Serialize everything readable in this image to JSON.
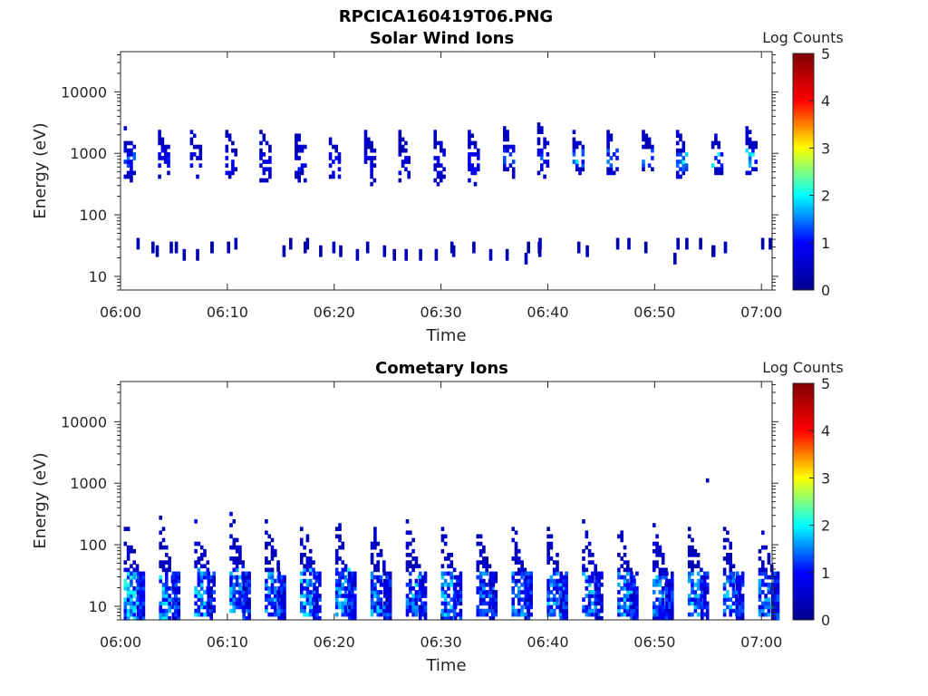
{
  "figure_title": "RPCICA160419T06.PNG",
  "colors": {
    "colormap": [
      "#00008f",
      "#0000ff",
      "#00ffff",
      "#ffff00",
      "#ff0000",
      "#800000"
    ],
    "axes": "#262626"
  },
  "chart_data": [
    {
      "type": "heatmap",
      "title": "Solar Wind Ions",
      "xlabel": "Time",
      "ylabel": "Energy (eV)",
      "yscale": "log",
      "ylim": [
        6,
        45000
      ],
      "xlim": [
        "06:00",
        "07:01"
      ],
      "x_ticks": [
        "06:00",
        "06:10",
        "06:20",
        "06:30",
        "06:40",
        "06:50",
        "07:00"
      ],
      "y_ticks": [
        "10",
        "100",
        "1000",
        "10000"
      ],
      "colorbar": {
        "label": "Log Counts",
        "range": [
          0,
          5
        ],
        "ticks": [
          "0",
          "1",
          "2",
          "3",
          "4",
          "5"
        ]
      },
      "bursts": [
        {
          "t": 0.3,
          "hi": 2600,
          "lo": 350,
          "peak": 1.3
        },
        {
          "t": 3.5,
          "hi": 2400,
          "lo": 400,
          "peak": 1.0
        },
        {
          "t": 6.5,
          "hi": 2200,
          "lo": 400,
          "peak": 0.9
        },
        {
          "t": 9.8,
          "hi": 2400,
          "lo": 300,
          "peak": 0.9
        },
        {
          "t": 13.0,
          "hi": 2400,
          "lo": 350,
          "peak": 0.9
        },
        {
          "t": 16.3,
          "hi": 2400,
          "lo": 350,
          "peak": 1.0
        },
        {
          "t": 19.5,
          "hi": 2200,
          "lo": 350,
          "peak": 0.9
        },
        {
          "t": 22.8,
          "hi": 2200,
          "lo": 300,
          "peak": 0.9
        },
        {
          "t": 26.0,
          "hi": 2200,
          "lo": 350,
          "peak": 0.9
        },
        {
          "t": 29.3,
          "hi": 2400,
          "lo": 300,
          "peak": 0.9
        },
        {
          "t": 32.5,
          "hi": 2400,
          "lo": 300,
          "peak": 1.0
        },
        {
          "t": 35.8,
          "hi": 2600,
          "lo": 400,
          "peak": 1.2
        },
        {
          "t": 39.0,
          "hi": 3000,
          "lo": 400,
          "peak": 1.3
        },
        {
          "t": 42.3,
          "hi": 2400,
          "lo": 500,
          "peak": 1.8
        },
        {
          "t": 45.5,
          "hi": 2400,
          "lo": 500,
          "peak": 1.5
        },
        {
          "t": 48.8,
          "hi": 2600,
          "lo": 500,
          "peak": 1.6
        },
        {
          "t": 52.0,
          "hi": 2600,
          "lo": 450,
          "peak": 2.0
        },
        {
          "t": 55.3,
          "hi": 2600,
          "lo": 500,
          "peak": 1.9
        },
        {
          "t": 58.5,
          "hi": 2800,
          "lo": 500,
          "peak": 1.9
        }
      ],
      "low_energy_band": [
        18,
        45
      ]
    },
    {
      "type": "heatmap",
      "title": "Cometary Ions",
      "xlabel": "Time",
      "ylabel": "Energy (eV)",
      "yscale": "log",
      "ylim": [
        6,
        45000
      ],
      "xlim": [
        "06:00",
        "07:01"
      ],
      "x_ticks": [
        "06:00",
        "06:10",
        "06:20",
        "06:30",
        "06:40",
        "06:50",
        "07:00"
      ],
      "y_ticks": [
        "10",
        "100",
        "1000",
        "10000"
      ],
      "colorbar": {
        "label": "Log Counts",
        "range": [
          0,
          5
        ],
        "ticks": [
          "0",
          "1",
          "2",
          "3",
          "4",
          "5"
        ]
      },
      "bursts": [
        {
          "t": 0.3,
          "hi": 300,
          "lo": 6,
          "peak": 2.0
        },
        {
          "t": 3.6,
          "hi": 300,
          "lo": 6,
          "peak": 1.8
        },
        {
          "t": 6.9,
          "hi": 320,
          "lo": 7,
          "peak": 1.8
        },
        {
          "t": 10.2,
          "hi": 380,
          "lo": 8,
          "peak": 1.7
        },
        {
          "t": 13.5,
          "hi": 280,
          "lo": 7,
          "peak": 1.7
        },
        {
          "t": 16.8,
          "hi": 320,
          "lo": 7,
          "peak": 1.8
        },
        {
          "t": 20.1,
          "hi": 300,
          "lo": 7,
          "peak": 1.8
        },
        {
          "t": 23.4,
          "hi": 280,
          "lo": 7,
          "peak": 1.7
        },
        {
          "t": 26.7,
          "hi": 260,
          "lo": 7,
          "peak": 1.7
        },
        {
          "t": 30.0,
          "hi": 260,
          "lo": 6,
          "peak": 1.8
        },
        {
          "t": 33.3,
          "hi": 260,
          "lo": 7,
          "peak": 1.6
        },
        {
          "t": 36.6,
          "hi": 260,
          "lo": 7,
          "peak": 1.6
        },
        {
          "t": 39.9,
          "hi": 240,
          "lo": 7,
          "peak": 1.7
        },
        {
          "t": 43.2,
          "hi": 230,
          "lo": 7,
          "peak": 1.7
        },
        {
          "t": 46.5,
          "hi": 230,
          "lo": 7,
          "peak": 1.7
        },
        {
          "t": 49.8,
          "hi": 230,
          "lo": 6,
          "peak": 1.7
        },
        {
          "t": 53.1,
          "hi": 240,
          "lo": 7,
          "peak": 1.8
        },
        {
          "t": 56.4,
          "hi": 220,
          "lo": 7,
          "peak": 1.7
        },
        {
          "t": 59.7,
          "hi": 220,
          "lo": 7,
          "peak": 1.6
        }
      ],
      "isolated_points": [
        {
          "t": 54.8,
          "e": 1150,
          "value": 0.3
        }
      ]
    }
  ]
}
